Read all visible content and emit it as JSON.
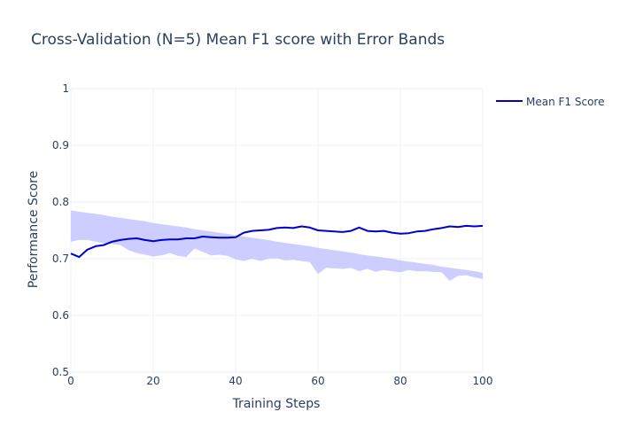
{
  "chart_data": {
    "type": "line",
    "title": "Cross-Validation (N=5) Mean F1 score with Error Bands",
    "xlabel": "Training Steps",
    "ylabel": "Performance Score",
    "xlim": [
      0,
      100
    ],
    "ylim": [
      0.5,
      1
    ],
    "xticks": [
      "0",
      "20",
      "40",
      "60",
      "80",
      "100"
    ],
    "yticks": [
      "0.5",
      "0.6",
      "0.7",
      "0.8",
      "0.9",
      "1"
    ],
    "grid": true,
    "legend": {
      "position": "top-right"
    },
    "colors": {
      "line": "#0000cd",
      "band": "#c8c8ff"
    },
    "series": [
      {
        "name": "Mean F1 Score",
        "x": [
          0,
          2,
          4,
          6,
          8,
          10,
          12,
          14,
          16,
          18,
          20,
          22,
          24,
          26,
          28,
          30,
          32,
          34,
          36,
          38,
          40,
          42,
          44,
          46,
          48,
          50,
          52,
          54,
          56,
          58,
          60,
          62,
          64,
          66,
          68,
          70,
          72,
          74,
          76,
          78,
          80,
          82,
          84,
          86,
          88,
          90,
          92,
          94,
          96,
          98,
          100
        ],
        "y": [
          0.709,
          0.703,
          0.716,
          0.722,
          0.724,
          0.73,
          0.733,
          0.735,
          0.736,
          0.733,
          0.731,
          0.733,
          0.734,
          0.734,
          0.736,
          0.736,
          0.739,
          0.738,
          0.737,
          0.737,
          0.738,
          0.746,
          0.749,
          0.75,
          0.751,
          0.754,
          0.755,
          0.754,
          0.757,
          0.755,
          0.75,
          0.749,
          0.748,
          0.747,
          0.749,
          0.755,
          0.749,
          0.748,
          0.749,
          0.746,
          0.744,
          0.745,
          0.748,
          0.749,
          0.752,
          0.754,
          0.757,
          0.756,
          0.758,
          0.757,
          0.758
        ]
      }
    ],
    "band": {
      "x": [
        0,
        2,
        4,
        6,
        8,
        10,
        12,
        14,
        16,
        18,
        20,
        22,
        24,
        26,
        28,
        30,
        32,
        34,
        36,
        38,
        40,
        42,
        44,
        46,
        48,
        50,
        52,
        54,
        56,
        58,
        60,
        62,
        64,
        66,
        68,
        70,
        72,
        74,
        76,
        78,
        80,
        82,
        84,
        86,
        88,
        90,
        92,
        94,
        96,
        98,
        100
      ],
      "upper": [
        0.785,
        0.783,
        0.781,
        0.779,
        0.777,
        0.774,
        0.772,
        0.77,
        0.768,
        0.766,
        0.763,
        0.761,
        0.759,
        0.757,
        0.755,
        0.752,
        0.75,
        0.748,
        0.746,
        0.744,
        0.741,
        0.739,
        0.737,
        0.735,
        0.733,
        0.73,
        0.728,
        0.726,
        0.724,
        0.722,
        0.719,
        0.717,
        0.715,
        0.713,
        0.711,
        0.708,
        0.706,
        0.704,
        0.702,
        0.7,
        0.697,
        0.695,
        0.693,
        0.691,
        0.689,
        0.686,
        0.684,
        0.682,
        0.68,
        0.678,
        0.675
      ],
      "lower": [
        0.73,
        0.733,
        0.733,
        0.73,
        0.727,
        0.726,
        0.724,
        0.715,
        0.71,
        0.707,
        0.704,
        0.706,
        0.71,
        0.705,
        0.703,
        0.718,
        0.712,
        0.706,
        0.707,
        0.705,
        0.699,
        0.696,
        0.7,
        0.696,
        0.7,
        0.701,
        0.697,
        0.698,
        0.696,
        0.694,
        0.673,
        0.684,
        0.683,
        0.682,
        0.684,
        0.678,
        0.682,
        0.677,
        0.68,
        0.678,
        0.676,
        0.68,
        0.678,
        0.678,
        0.677,
        0.676,
        0.661,
        0.67,
        0.671,
        0.667,
        0.664
      ]
    }
  }
}
